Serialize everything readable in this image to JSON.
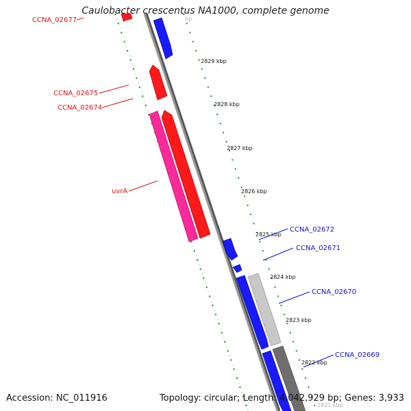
{
  "title": "Caulobacter crescentus NA1000, complete genome",
  "accession": "Accession: NC_011916",
  "summary": "Topology: circular; Length: 4,042,929 bp; Genes: 3,933",
  "colors": {
    "forward": "#1010ff",
    "reverse": "#ff1010",
    "pink": "#ff2a9a",
    "light_gray": "#c8c8c8",
    "dark_gray": "#707070",
    "backbone": "#8a8a8a",
    "ticks": "#228b22",
    "reverse_label": "#dd1111",
    "forward_label": "#1111cc"
  },
  "kbp_ticks": [
    "2829 kbp",
    "2828 kbp",
    "2827 kbp",
    "2826 kbp",
    "2825 kbp",
    "2824 kbp",
    "2823 kbp",
    "2822 kbp",
    "2821 kbp"
  ],
  "labels": {
    "left": [
      "CCNA_02677",
      "CCNA_02675",
      "CCNA_02674",
      "uvrA"
    ],
    "right": [
      "CCNA_02672",
      "CCNA_02671",
      "CCNA_02670",
      "CCNA_02669"
    ]
  }
}
